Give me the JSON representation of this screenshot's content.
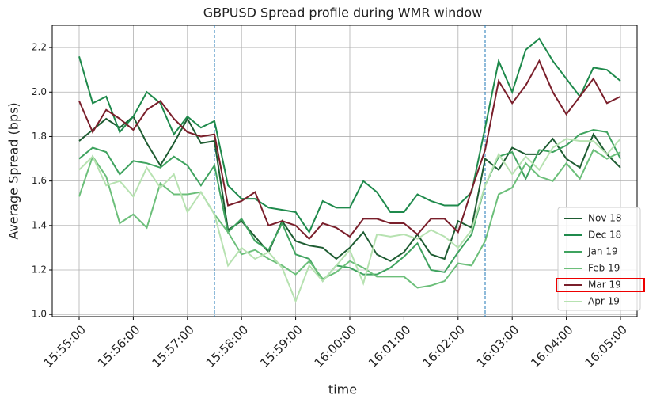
{
  "chart_data": {
    "type": "line",
    "title": "GBPUSD Spread profile during WMR window",
    "xlabel": "time",
    "ylabel": "Average Spread (bps)",
    "categories": [
      "15:55:00",
      null,
      null,
      null,
      "15:56:00",
      null,
      null,
      null,
      "15:57:00",
      null,
      null,
      null,
      "15:58:00",
      null,
      null,
      null,
      "15:59:00",
      null,
      null,
      null,
      "16:00:00",
      null,
      null,
      null,
      "16:01:00",
      null,
      null,
      null,
      "16:02:00",
      null,
      null,
      null,
      "16:03:00",
      null,
      null,
      null,
      "16:04:00",
      null,
      null,
      null,
      "16:05:00"
    ],
    "series": [
      {
        "name": "Nov 18",
        "color": "#1e5c32",
        "values": [
          1.78,
          1.83,
          1.88,
          1.84,
          1.89,
          1.77,
          1.67,
          1.77,
          1.88,
          1.77,
          1.78,
          1.38,
          1.42,
          1.35,
          1.28,
          1.42,
          1.33,
          1.31,
          1.3,
          1.25,
          1.3,
          1.37,
          1.27,
          1.24,
          1.28,
          1.36,
          1.27,
          1.25,
          1.42,
          1.39,
          1.7,
          1.65,
          1.75,
          1.72,
          1.72,
          1.79,
          1.7,
          1.66,
          1.81,
          1.72,
          1.66
        ]
      },
      {
        "name": "Dec 18",
        "color": "#1f8a4c",
        "values": [
          2.16,
          1.95,
          1.98,
          1.82,
          1.89,
          2.0,
          1.95,
          1.81,
          1.89,
          1.84,
          1.87,
          1.58,
          1.52,
          1.52,
          1.48,
          1.47,
          1.46,
          1.37,
          1.51,
          1.48,
          1.48,
          1.6,
          1.55,
          1.46,
          1.46,
          1.54,
          1.51,
          1.49,
          1.49,
          1.55,
          1.84,
          2.14,
          2.0,
          2.19,
          2.24,
          2.14,
          2.06,
          1.98,
          2.11,
          2.1,
          2.05
        ]
      },
      {
        "name": "Jan 19",
        "color": "#3fa35f",
        "values": [
          1.7,
          1.75,
          1.73,
          1.63,
          1.69,
          1.68,
          1.66,
          1.71,
          1.67,
          1.58,
          1.67,
          1.37,
          1.43,
          1.33,
          1.29,
          1.41,
          1.27,
          1.25,
          1.15,
          1.22,
          1.21,
          1.18,
          1.18,
          1.21,
          1.26,
          1.32,
          1.2,
          1.19,
          1.28,
          1.36,
          1.58,
          1.71,
          1.73,
          1.61,
          1.74,
          1.73,
          1.76,
          1.81,
          1.83,
          1.82,
          1.7
        ]
      },
      {
        "name": "Feb 19",
        "color": "#6cbf7a",
        "values": [
          1.53,
          1.71,
          1.62,
          1.41,
          1.45,
          1.39,
          1.59,
          1.54,
          1.54,
          1.55,
          1.45,
          1.37,
          1.27,
          1.29,
          1.25,
          1.22,
          1.18,
          1.24,
          1.16,
          1.19,
          1.24,
          1.21,
          1.17,
          1.17,
          1.17,
          1.12,
          1.13,
          1.15,
          1.23,
          1.22,
          1.33,
          1.54,
          1.57,
          1.68,
          1.62,
          1.6,
          1.68,
          1.61,
          1.74,
          1.7,
          1.73
        ]
      },
      {
        "name": "Mar 19",
        "color": "#7a1f2b",
        "values": [
          1.96,
          1.82,
          1.92,
          1.88,
          1.83,
          1.92,
          1.96,
          1.88,
          1.82,
          1.8,
          1.81,
          1.49,
          1.51,
          1.55,
          1.4,
          1.42,
          1.4,
          1.34,
          1.41,
          1.39,
          1.35,
          1.43,
          1.43,
          1.41,
          1.41,
          1.36,
          1.43,
          1.43,
          1.37,
          1.56,
          1.74,
          2.05,
          1.95,
          2.03,
          2.14,
          2.0,
          1.9,
          1.98,
          2.06,
          1.95,
          1.98
        ]
      },
      {
        "name": "Apr 19",
        "color": "#b7e2b1",
        "values": [
          1.65,
          1.71,
          1.58,
          1.6,
          1.53,
          1.66,
          1.57,
          1.63,
          1.46,
          1.55,
          1.45,
          1.22,
          1.3,
          1.25,
          1.28,
          1.21,
          1.06,
          1.22,
          1.15,
          1.22,
          1.29,
          1.14,
          1.36,
          1.35,
          1.36,
          1.34,
          1.38,
          1.35,
          1.3,
          1.38,
          1.58,
          1.72,
          1.63,
          1.71,
          1.65,
          1.75,
          1.79,
          1.78,
          1.78,
          1.72,
          1.79
        ]
      }
    ],
    "vlines": [
      10,
      30
    ],
    "vline_color": "#1f77b4",
    "ylim": [
      0.99,
      2.3
    ],
    "yticks": [
      {
        "value": 1.0,
        "label": "1.0"
      },
      1.2,
      1.4,
      1.6,
      1.8,
      {
        "value": 2.0,
        "label": "2.0"
      },
      2.2
    ],
    "grid": true,
    "legend": "lower right"
  }
}
